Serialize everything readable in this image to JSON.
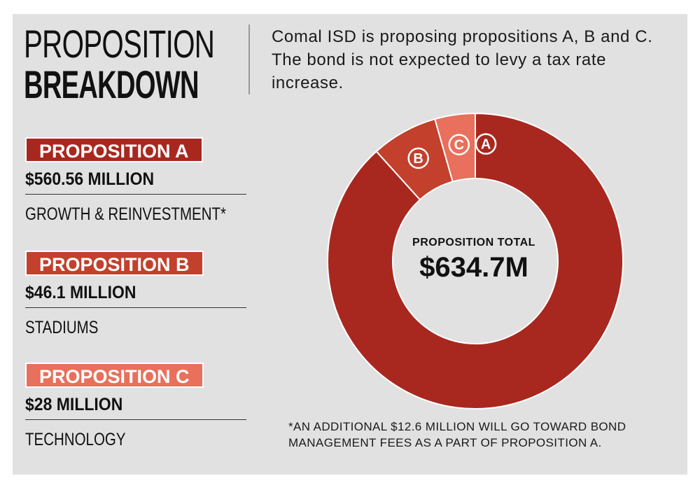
{
  "header": {
    "title_line1": "PROPOSITION",
    "title_line2": "BREAKDOWN",
    "intro": "Comal ISD is proposing propositions A, B and C. The bond is not expected to levy a tax rate increase."
  },
  "propositions": [
    {
      "label": "PROPOSITION A",
      "amount": "$560.56 MILLION",
      "description": "GROWTH & REINVESTMENT*",
      "color": "#a8281f"
    },
    {
      "label": "PROPOSITION B",
      "amount": "$46.1 MILLION",
      "description": "STADIUMS",
      "color": "#c2402c"
    },
    {
      "label": "PROPOSITION C",
      "amount": "$28 MILLION",
      "description": "TECHNOLOGY",
      "color": "#e8705c"
    }
  ],
  "chart_data": {
    "type": "pie",
    "categories": [
      "A",
      "B",
      "C"
    ],
    "values": [
      560.56,
      46.1,
      28
    ],
    "colors": [
      "#a8281f",
      "#c2402c",
      "#e8705c"
    ],
    "center_label": "PROPOSITION TOTAL",
    "center_value": "$634.7M"
  },
  "footnote": "*AN ADDITIONAL $12.6 MILLION WILL GO TOWARD BOND MANAGEMENT FEES AS A PART OF PROPOSITION A."
}
